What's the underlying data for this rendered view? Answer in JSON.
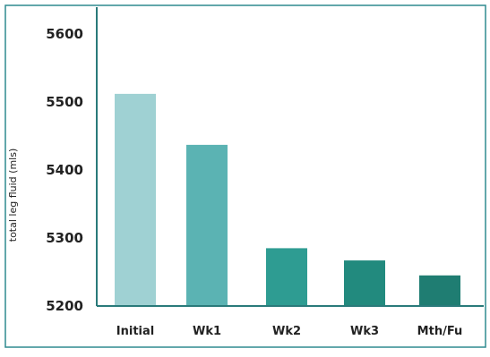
{
  "chart_data": {
    "type": "bar",
    "title": "",
    "xlabel": "",
    "ylabel": "total leg fluid (mls)",
    "ylim": [
      5200,
      5600
    ],
    "yticks": [
      5200,
      5300,
      5400,
      5500,
      5600
    ],
    "grid": false,
    "categories": [
      "Initial",
      "Wk1",
      "Wk2",
      "Wk3",
      "Mth/Fu"
    ],
    "tick_labels": [
      "Initial",
      "Wk1",
      "Wk2",
      "Wk3",
      "Mth/Fu"
    ],
    "values": [
      5512,
      5437,
      5285,
      5267,
      5245
    ],
    "colors": [
      "#9fd1d3",
      "#5bb3b3",
      "#2e9c92",
      "#228a7e",
      "#1f7d72"
    ],
    "axis_color": "#2a7a7a",
    "frame_color": "#2f8a8f"
  }
}
